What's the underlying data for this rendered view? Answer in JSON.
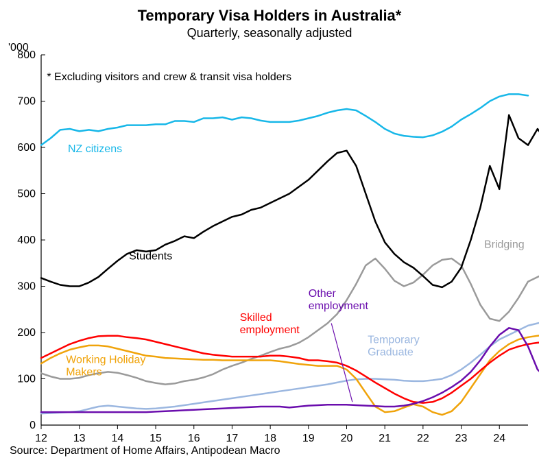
{
  "chart": {
    "type": "line",
    "title": "Temporary Visa Holders in Australia*",
    "subtitle": "Quarterly, seasonally adjusted",
    "y_axis_label": "'000",
    "footnote": "* Excluding visitors and crew & transit visa holders",
    "source": "Source: Department of Home Affairs, Antipodean Macro",
    "colors": {
      "background": "#ffffff",
      "text": "#000000",
      "nz": "#17b7e8",
      "students": "#000000",
      "bridging": "#9a9a9a",
      "skilled": "#ff0000",
      "working_holiday": "#f0a30a",
      "temp_graduate": "#9bb7e0",
      "other_emp": "#6a0dad"
    },
    "line_width": 2.5,
    "xlim": [
      12,
      24.75
    ],
    "ylim": [
      0,
      800
    ],
    "ytick_step": 100,
    "xtick_step": 1,
    "x_start": 12,
    "x_step": 0.25,
    "series": {
      "nz": {
        "label": "NZ citizens",
        "label_pos": {
          "x": 12.7,
          "y": 590
        },
        "values": [
          605,
          620,
          638,
          640,
          635,
          638,
          635,
          640,
          643,
          648,
          648,
          648,
          650,
          650,
          657,
          657,
          655,
          663,
          663,
          665,
          660,
          665,
          663,
          658,
          655,
          655,
          655,
          658,
          663,
          668,
          675,
          680,
          683,
          680,
          668,
          655,
          640,
          630,
          625,
          623,
          622,
          626,
          634,
          645,
          660,
          672,
          685,
          700,
          710,
          715,
          715,
          712
        ]
      },
      "students": {
        "label": "Students",
        "label_pos": {
          "x": 14.3,
          "y": 358
        },
        "values": [
          318,
          310,
          303,
          300,
          300,
          308,
          320,
          338,
          355,
          370,
          378,
          375,
          378,
          390,
          398,
          408,
          404,
          418,
          430,
          440,
          450,
          455,
          465,
          470,
          480,
          490,
          500,
          515,
          530,
          550,
          570,
          588,
          593,
          560,
          500,
          440,
          395,
          370,
          352,
          340,
          322,
          303,
          298,
          310,
          340,
          400,
          470,
          560,
          510,
          670,
          620,
          605,
          640,
          612
        ]
      },
      "bridging": {
        "label": "Bridging",
        "label_pos": {
          "x": 23.6,
          "y": 383
        },
        "values": [
          112,
          105,
          100,
          100,
          102,
          108,
          112,
          115,
          113,
          108,
          102,
          95,
          91,
          88,
          90,
          95,
          98,
          103,
          110,
          120,
          128,
          135,
          143,
          150,
          158,
          165,
          170,
          178,
          190,
          205,
          220,
          240,
          270,
          305,
          345,
          360,
          338,
          312,
          300,
          308,
          325,
          345,
          357,
          360,
          345,
          305,
          260,
          230,
          225,
          245,
          275,
          310,
          320,
          330
        ]
      },
      "skilled": {
        "label": "Skilled employment",
        "label_pos": {
          "x": 17.2,
          "y": 225,
          "two_line": true,
          "line2": "employment"
        },
        "values": [
          145,
          155,
          165,
          175,
          182,
          188,
          192,
          193,
          193,
          190,
          188,
          185,
          180,
          175,
          170,
          165,
          160,
          155,
          152,
          150,
          148,
          148,
          148,
          148,
          150,
          150,
          148,
          145,
          140,
          140,
          138,
          135,
          128,
          118,
          105,
          92,
          80,
          68,
          58,
          50,
          48,
          50,
          58,
          70,
          85,
          100,
          118,
          135,
          150,
          163,
          170,
          175,
          178,
          180
        ]
      },
      "working_holiday": {
        "label": "Working Holiday Makers",
        "label_pos": {
          "x": 12.65,
          "y": 134,
          "two_line": true,
          "line1": "Working Holiday",
          "line2": "Makers"
        },
        "values": [
          133,
          145,
          155,
          163,
          168,
          172,
          172,
          170,
          165,
          160,
          155,
          150,
          148,
          145,
          144,
          143,
          142,
          141,
          141,
          140,
          140,
          140,
          140,
          140,
          140,
          138,
          135,
          132,
          130,
          128,
          128,
          128,
          120,
          100,
          70,
          40,
          28,
          30,
          38,
          45,
          40,
          28,
          22,
          30,
          50,
          80,
          110,
          140,
          160,
          175,
          185,
          190,
          193,
          195
        ]
      },
      "temp_graduate": {
        "label": "Temporary Graduate",
        "label_pos": {
          "x": 20.55,
          "y": 177,
          "two_line": true,
          "line1": "Temporary",
          "line2": "Graduate"
        },
        "values": [
          25,
          26,
          27,
          28,
          30,
          35,
          40,
          42,
          40,
          38,
          36,
          35,
          36,
          38,
          40,
          43,
          46,
          49,
          52,
          55,
          58,
          61,
          64,
          67,
          70,
          73,
          76,
          79,
          82,
          85,
          88,
          92,
          96,
          99,
          100,
          100,
          99,
          98,
          96,
          95,
          95,
          97,
          100,
          108,
          120,
          135,
          152,
          170,
          185,
          195,
          205,
          215,
          220,
          225
        ]
      },
      "other_emp": {
        "label": "Other employment",
        "label_pos": {
          "x": 19.0,
          "y": 277,
          "two_line": true,
          "line1": "Other",
          "line2": "employment"
        },
        "callout": {
          "x1": 19.6,
          "y1": 220,
          "x2": 20.15,
          "y2": 50
        },
        "values": [
          28,
          28,
          28,
          28,
          28,
          28,
          28,
          28,
          28,
          28,
          28,
          28,
          29,
          30,
          31,
          32,
          33,
          34,
          35,
          36,
          37,
          38,
          39,
          40,
          40,
          40,
          38,
          40,
          42,
          43,
          44,
          44,
          44,
          43,
          42,
          41,
          40,
          40,
          42,
          46,
          52,
          60,
          70,
          82,
          96,
          115,
          140,
          170,
          195,
          210,
          205,
          170,
          120,
          100
        ]
      }
    }
  }
}
